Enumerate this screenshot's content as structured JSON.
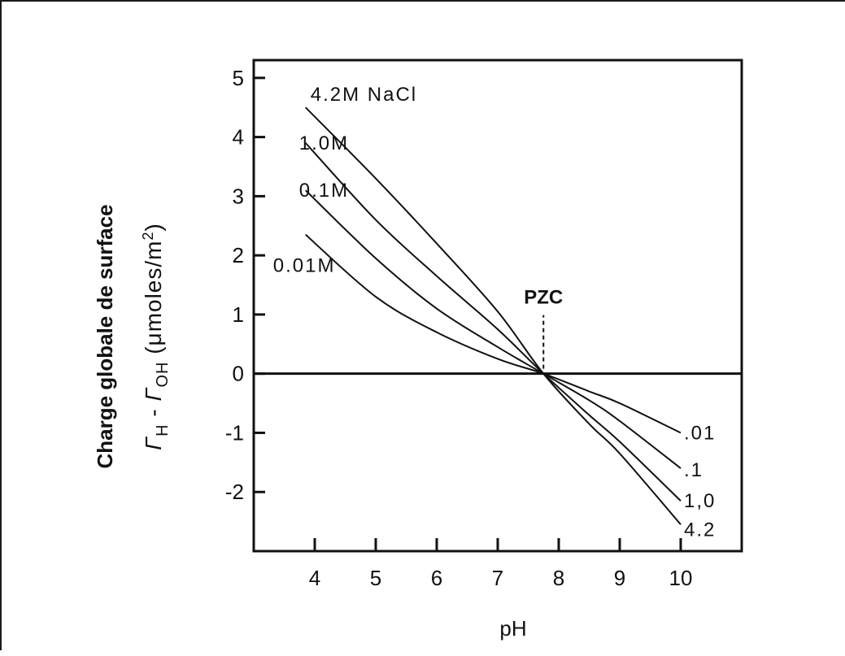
{
  "chart_data": {
    "type": "line",
    "xlabel": "pH",
    "ylabel_main": "Charge globale de surface",
    "ylabel_sub": {
      "gamma_h": "Γ",
      "sub_h": "H",
      "minus": " - ",
      "gamma_oh": "Γ",
      "sub_oh": "OH",
      "units_open": "  (μmoles/m",
      "units_sup": "2",
      "units_close": ")"
    },
    "xlim": [
      3,
      11
    ],
    "ylim": [
      -3,
      5.3
    ],
    "x_ticks": [
      4,
      5,
      6,
      7,
      8,
      9,
      10
    ],
    "x_tick_labels": [
      "4",
      "5",
      "6",
      "7",
      "8",
      "9",
      "10"
    ],
    "y_ticks": [
      -2,
      -1,
      0,
      1,
      2,
      3,
      4,
      5
    ],
    "y_tick_labels": [
      "-2",
      "-1",
      "0",
      "1",
      "2",
      "3",
      "4",
      "5"
    ],
    "grid": false,
    "annotation": {
      "text": "PZC",
      "x": 7.75
    },
    "series": [
      {
        "name": "4.2M NaCl",
        "end_label": "4.2",
        "x": [
          3.85,
          5.0,
          6.0,
          7.0,
          7.75,
          8.5,
          9.0,
          10.0
        ],
        "y": [
          4.5,
          3.3,
          2.2,
          1.05,
          0.0,
          -0.85,
          -1.35,
          -2.55
        ]
      },
      {
        "name": "1.0M",
        "end_label": "1,0",
        "x": [
          3.85,
          5.0,
          6.0,
          7.0,
          7.75,
          8.5,
          9.0,
          10.0
        ],
        "y": [
          3.9,
          2.6,
          1.65,
          0.75,
          0.0,
          -0.7,
          -1.15,
          -2.15
        ]
      },
      {
        "name": "0.1M",
        "end_label": ".1",
        "x": [
          3.85,
          5.0,
          6.0,
          7.0,
          7.75,
          8.5,
          9.0,
          10.0
        ],
        "y": [
          3.1,
          1.95,
          1.1,
          0.45,
          0.0,
          -0.45,
          -0.8,
          -1.6
        ]
      },
      {
        "name": "0.01M",
        "end_label": ".01",
        "x": [
          3.85,
          5.0,
          6.0,
          7.0,
          7.75,
          8.5,
          9.0,
          10.0
        ],
        "y": [
          2.35,
          1.3,
          0.7,
          0.25,
          0.0,
          -0.3,
          -0.5,
          -1.0
        ]
      }
    ]
  }
}
